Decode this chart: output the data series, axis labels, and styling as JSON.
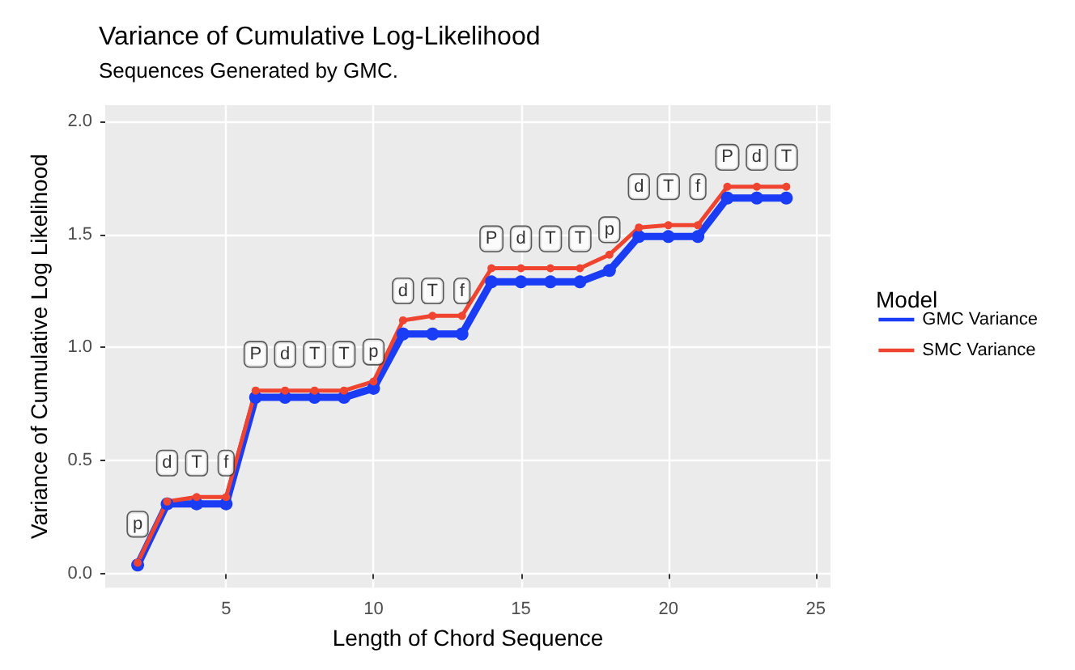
{
  "chart_data": {
    "type": "line",
    "title": "Variance of Cumulative Log-Likelihood",
    "subtitle": "Sequences Generated by GMC.",
    "xlabel": "Length of Chord Sequence",
    "ylabel": "Variance of Cumulative Log Likelihood",
    "legend_title": "Model",
    "x": [
      2,
      3,
      4,
      5,
      6,
      7,
      8,
      9,
      10,
      11,
      12,
      13,
      14,
      15,
      16,
      17,
      18,
      19,
      20,
      21,
      22,
      23,
      24
    ],
    "series": [
      {
        "name": "GMC Variance",
        "color": "#1a3cf5",
        "values": [
          0.04,
          0.31,
          0.31,
          0.31,
          0.78,
          0.78,
          0.78,
          0.78,
          0.82,
          1.06,
          1.06,
          1.06,
          1.29,
          1.29,
          1.29,
          1.29,
          1.34,
          1.49,
          1.49,
          1.49,
          1.66,
          1.66,
          1.66
        ]
      },
      {
        "name": "SMC Variance",
        "color": "#ee4430",
        "values": [
          0.05,
          0.32,
          0.34,
          0.34,
          0.81,
          0.81,
          0.81,
          0.81,
          0.85,
          1.12,
          1.14,
          1.14,
          1.35,
          1.35,
          1.35,
          1.35,
          1.41,
          1.53,
          1.54,
          1.54,
          1.71,
          1.71,
          1.71
        ]
      }
    ],
    "xlim": [
      0.9,
      25.5
    ],
    "xticks": [
      5,
      10,
      15,
      20,
      25
    ],
    "ylim": [
      -0.06,
      2.07
    ],
    "yticks": [
      {
        "value": 0,
        "label": "0.0"
      },
      {
        "value": 0.5,
        "label": "0.5"
      },
      {
        "value": 1,
        "label": "1.0"
      },
      {
        "value": 1.5,
        "label": "1.5"
      },
      {
        "value": 2,
        "label": "2.0"
      }
    ],
    "grid": true,
    "legend": "right",
    "marker": "circle",
    "line_style": "solid",
    "annotations": [
      {
        "text": "p",
        "x": 2,
        "y": 0.22
      },
      {
        "text": "d",
        "x": 3,
        "y": 0.49
      },
      {
        "text": "T",
        "x": 4,
        "y": 0.49
      },
      {
        "text": "f",
        "x": 5,
        "y": 0.49
      },
      {
        "text": "P",
        "x": 6,
        "y": 0.97
      },
      {
        "text": "d",
        "x": 7,
        "y": 0.97
      },
      {
        "text": "T",
        "x": 8,
        "y": 0.97
      },
      {
        "text": "T",
        "x": 9,
        "y": 0.97
      },
      {
        "text": "p",
        "x": 10,
        "y": 0.98
      },
      {
        "text": "d",
        "x": 11,
        "y": 1.25
      },
      {
        "text": "T",
        "x": 12,
        "y": 1.25
      },
      {
        "text": "f",
        "x": 13,
        "y": 1.25
      },
      {
        "text": "P",
        "x": 14,
        "y": 1.48
      },
      {
        "text": "d",
        "x": 15,
        "y": 1.48
      },
      {
        "text": "T",
        "x": 16,
        "y": 1.48
      },
      {
        "text": "T",
        "x": 17,
        "y": 1.48
      },
      {
        "text": "p",
        "x": 18,
        "y": 1.52
      },
      {
        "text": "d",
        "x": 19,
        "y": 1.71
      },
      {
        "text": "T",
        "x": 20,
        "y": 1.71
      },
      {
        "text": "f",
        "x": 21,
        "y": 1.71
      },
      {
        "text": "P",
        "x": 22,
        "y": 1.84
      },
      {
        "text": "d",
        "x": 23,
        "y": 1.84
      },
      {
        "text": "T",
        "x": 24,
        "y": 1.84
      }
    ]
  }
}
